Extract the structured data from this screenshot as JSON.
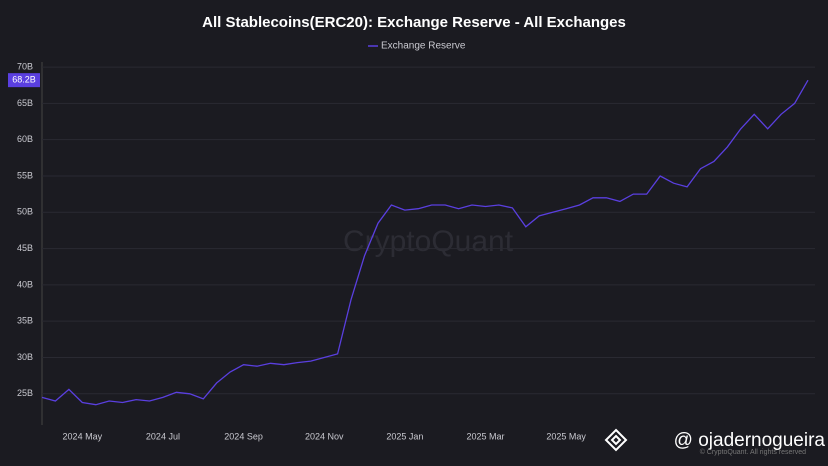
{
  "chart_data": {
    "type": "line",
    "title": "All Stablecoins(ERC20): Exchange Reserve - All Exchanges",
    "categories": [
      null,
      null,
      null,
      "2024 May",
      null,
      null,
      null,
      null,
      null,
      "2024 Jul",
      null,
      null,
      null,
      null,
      null,
      "2024 Sep",
      null,
      null,
      null,
      null,
      null,
      "2024 Nov",
      null,
      null,
      null,
      null,
      null,
      "2025 Jan",
      null,
      null,
      null,
      null,
      null,
      "2025 Mar",
      null,
      null,
      null,
      null,
      null,
      "2025 May",
      null,
      null,
      null,
      null,
      null,
      null,
      null,
      null,
      null,
      null,
      null,
      null,
      null,
      null,
      null,
      null,
      null,
      null
    ],
    "series": [
      {
        "name": "Exchange Reserve",
        "color": "#5a3fe0",
        "values": [
          24.5,
          24.0,
          25.6,
          23.8,
          23.5,
          24.0,
          23.8,
          24.2,
          24.0,
          24.5,
          25.2,
          25.0,
          24.3,
          26.5,
          28.0,
          29.0,
          28.8,
          29.2,
          29.0,
          29.3,
          29.5,
          30.0,
          30.5,
          38.0,
          44.0,
          48.5,
          51.0,
          50.3,
          50.5,
          51.0,
          51.0,
          50.5,
          51.0,
          50.8,
          51.0,
          50.6,
          48.0,
          49.5,
          50.0,
          50.5,
          51.0,
          52.0,
          52.0,
          51.5,
          52.5,
          52.5,
          55.0,
          54.0,
          53.5,
          56.0,
          57.0,
          59.0,
          61.5,
          63.5,
          61.5,
          63.5,
          65.0,
          68.2
        ]
      }
    ],
    "ylim": [
      20.7,
      70.7
    ],
    "yticks": [
      {
        "value": 25,
        "label": "25B"
      },
      {
        "value": 30,
        "label": "30B"
      },
      {
        "value": 35,
        "label": "35B"
      },
      {
        "value": 40,
        "label": "40B"
      },
      {
        "value": 45,
        "label": "45B"
      },
      {
        "value": 50,
        "label": "50B"
      },
      {
        "value": 55,
        "label": "55B"
      },
      {
        "value": 60,
        "label": "60B"
      },
      {
        "value": 65,
        "label": "65B"
      },
      {
        "value": 70,
        "label": "70B"
      }
    ],
    "grid": true,
    "current_value": 68.2,
    "current_value_label": "68.2B",
    "watermark": "CryptoQuant",
    "credit": "@ ojadernogueira",
    "copyright": "© CryptoQuant. All rights reserved"
  }
}
